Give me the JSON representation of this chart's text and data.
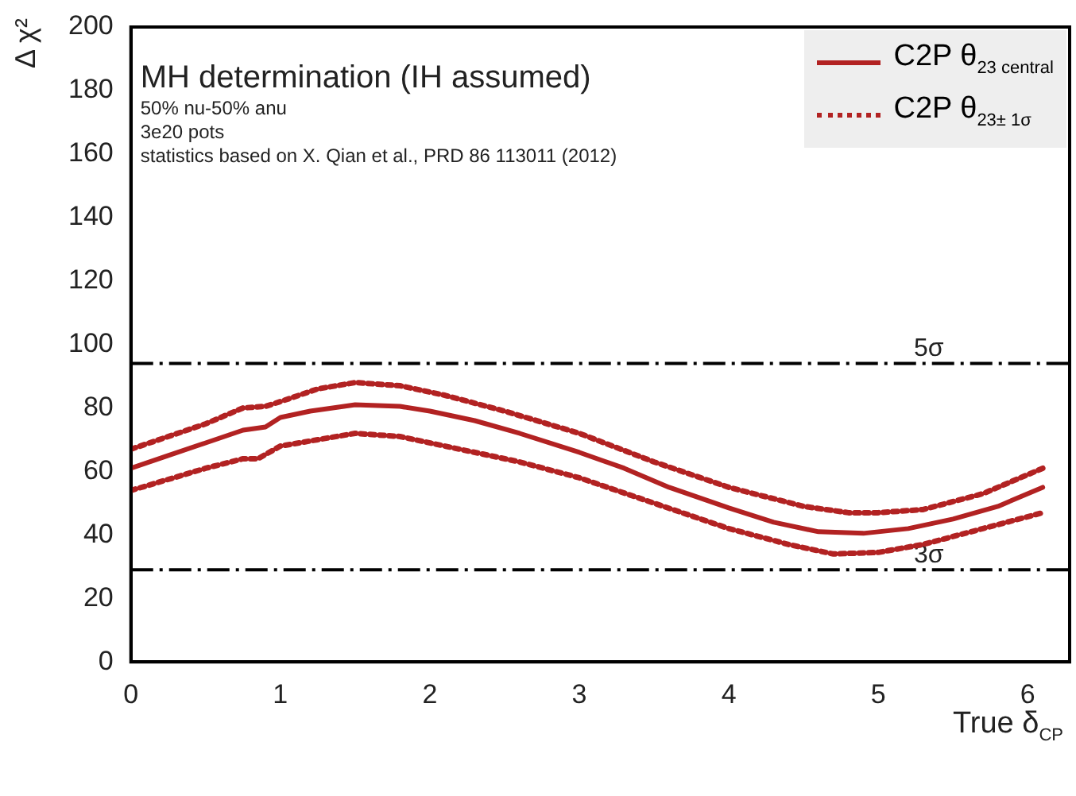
{
  "chart_data": {
    "type": "line",
    "xlabel": "True δ$_{CP}$",
    "ylabel": "Δ χ²",
    "annotations": [
      "MH determination (IH assumed)",
      "50% nu-50% anu",
      "3e20 pots",
      "statistics based on X. Qian et al., PRD 86 113011 (2012)"
    ],
    "xlim": [
      0,
      6.28
    ],
    "xticks": [
      0,
      1,
      2,
      3,
      4,
      5,
      6
    ],
    "ylim": [
      0,
      200
    ],
    "yticks": [
      0,
      20,
      40,
      60,
      80,
      100,
      120,
      140,
      160,
      180,
      200
    ],
    "grid": false,
    "legend": "top right",
    "marker": "none",
    "ref_lines": [
      {
        "axis": "y",
        "value": 94,
        "label": "5σ",
        "color": "#000000",
        "line_style": "dashed"
      },
      {
        "axis": "y",
        "value": 29,
        "label": "3σ",
        "color": "#000000",
        "line_style": "dashed"
      }
    ],
    "series": [
      {
        "name": "C2P θ$_{23 central}$",
        "color": "#b22222",
        "line_style": "solid",
        "x": [
          0,
          0.25,
          0.5,
          0.75,
          0.9,
          1.0,
          1.2,
          1.5,
          1.8,
          2.0,
          2.3,
          2.6,
          3.0,
          3.3,
          3.6,
          4.0,
          4.3,
          4.6,
          4.9,
          5.2,
          5.5,
          5.8,
          6.1
        ],
        "values": [
          61,
          65,
          69,
          73,
          74,
          77,
          79,
          81,
          80.5,
          79,
          76,
          72,
          66,
          61,
          55,
          48.5,
          44,
          41,
          40.5,
          42,
          45,
          49,
          55
        ]
      },
      {
        "name": "C2P θ$_{23± 1σ}$",
        "color": "#b22222",
        "line_style": "dotted",
        "x": [
          0,
          0.5,
          0.75,
          0.9,
          1.0,
          1.25,
          1.5,
          1.8,
          2.1,
          2.5,
          3.0,
          3.5,
          4.0,
          4.5,
          4.8,
          5.0,
          5.3,
          5.7,
          6.1
        ],
        "values": [
          67,
          75,
          80,
          80.5,
          82,
          86,
          88,
          87,
          84,
          79,
          72,
          63,
          55,
          49,
          47,
          47,
          48,
          53,
          61
        ]
      },
      {
        "color": "#b22222",
        "line_style": "dotted",
        "x": [
          0,
          0.5,
          0.75,
          0.85,
          1.0,
          1.25,
          1.5,
          1.8,
          2.2,
          2.6,
          3.0,
          3.5,
          4.0,
          4.4,
          4.7,
          5.0,
          5.3,
          5.7,
          6.1
        ],
        "values": [
          54,
          61,
          64,
          64,
          68,
          70,
          72,
          71,
          67,
          63,
          58,
          50,
          42,
          37,
          34,
          34.5,
          37,
          42,
          47
        ]
      }
    ]
  }
}
